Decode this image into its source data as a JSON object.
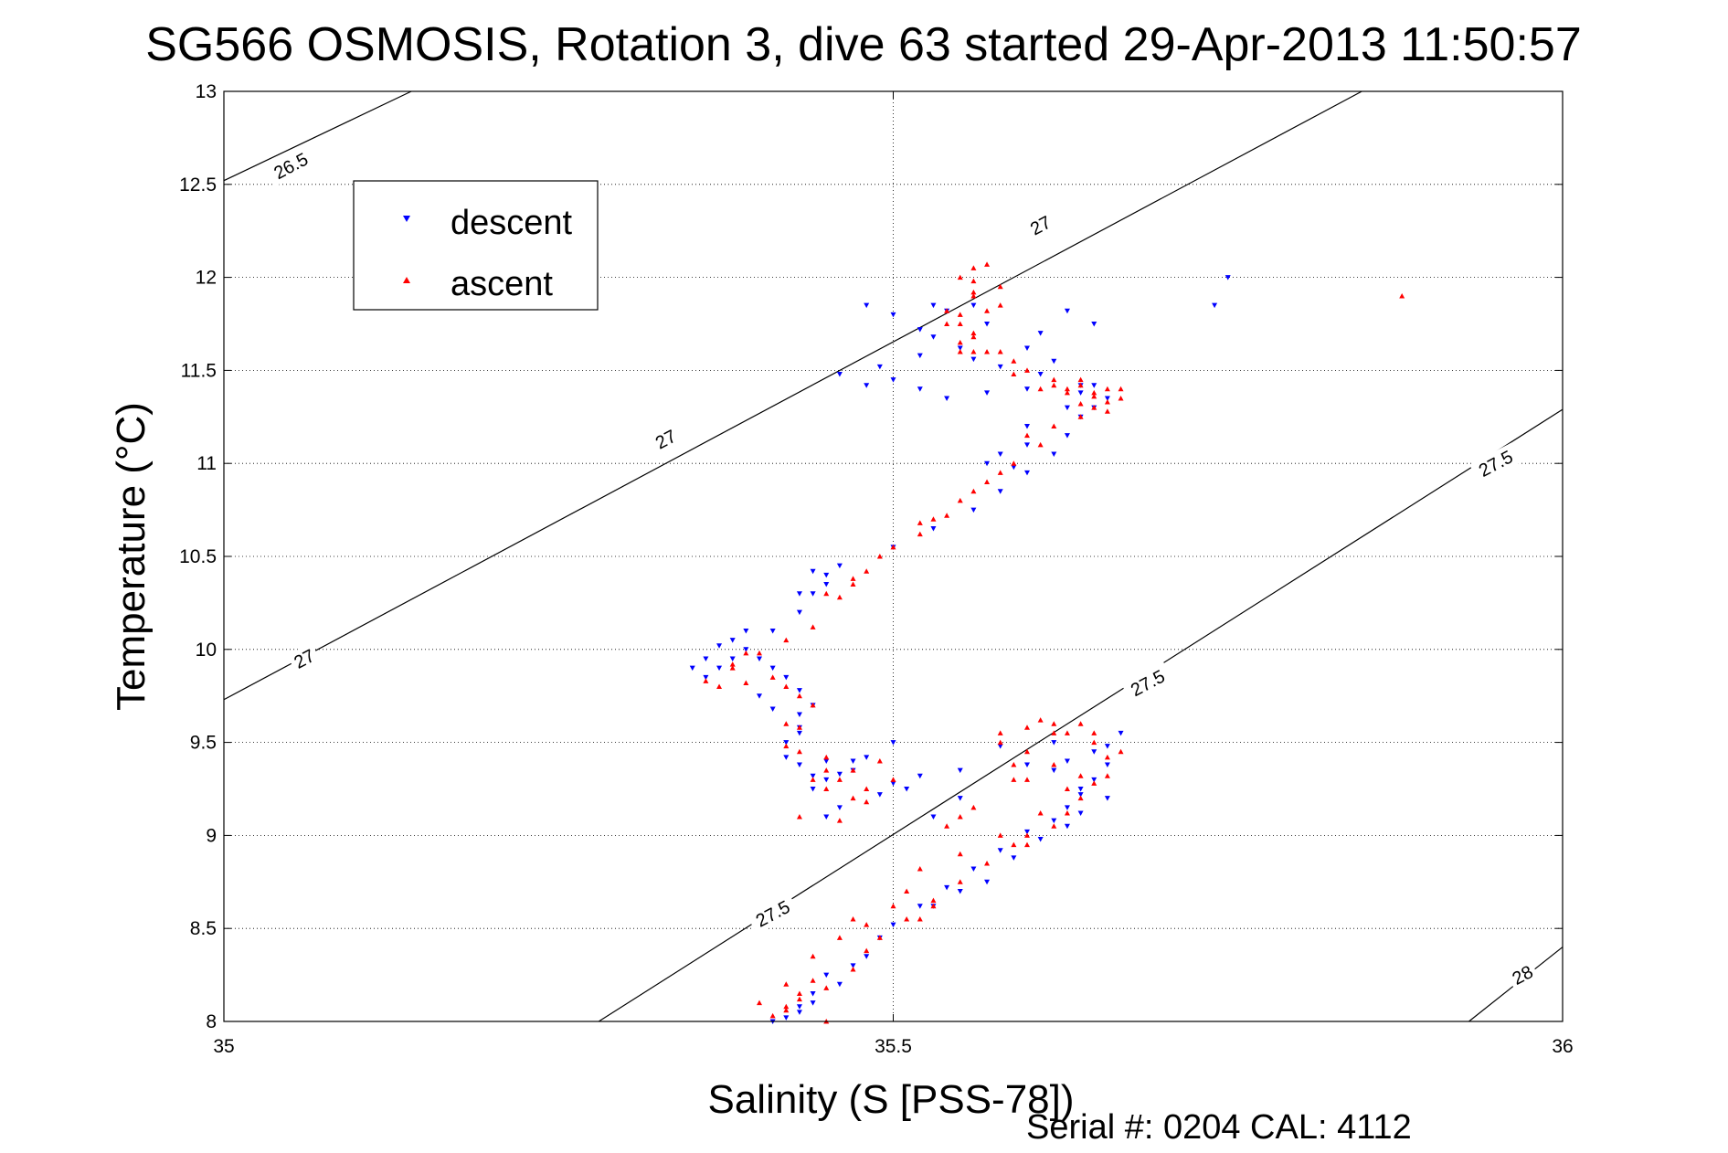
{
  "chart_data": {
    "type": "scatter",
    "title": "SG566 OSMOSIS, Rotation 3, dive 63 started 29-Apr-2013 11:50:57",
    "xlabel": "Salinity (S [PSS-78])",
    "ylabel": "Temperature (°C)",
    "xlim": [
      35,
      36
    ],
    "ylim": [
      8,
      13
    ],
    "x_ticks": [
      "35",
      "35.5",
      "36"
    ],
    "y_ticks": [
      "8",
      "8.5",
      "9",
      "9.5",
      "10",
      "10.5",
      "11",
      "11.5",
      "12",
      "12.5",
      "13"
    ],
    "grid": "dotted",
    "legend_position": "top-left",
    "footer": "Serial #: 0204  CAL: 4112",
    "density_contours": [
      {
        "label": "26.5",
        "points": [
          [
            35.0,
            12.52
          ],
          [
            35.14,
            13.0
          ]
        ]
      },
      {
        "label": "27",
        "points": [
          [
            35.0,
            9.73
          ],
          [
            35.85,
            13.0
          ]
        ]
      },
      {
        "label": "27.5",
        "points": [
          [
            35.28,
            8.0
          ],
          [
            36.0,
            11.29
          ]
        ]
      },
      {
        "label": "28",
        "points": [
          [
            35.93,
            8.0
          ],
          [
            36.0,
            8.4
          ]
        ]
      }
    ],
    "contour_labels": [
      {
        "text": "26.5",
        "x": 35.05,
        "y": 12.6
      },
      {
        "text": "27",
        "x": 35.61,
        "y": 12.28
      },
      {
        "text": "27",
        "x": 35.33,
        "y": 11.13
      },
      {
        "text": "27",
        "x": 35.06,
        "y": 9.95
      },
      {
        "text": "27.5",
        "x": 35.95,
        "y": 11.0
      },
      {
        "text": "27.5",
        "x": 35.69,
        "y": 9.82
      },
      {
        "text": "27.5",
        "x": 35.41,
        "y": 8.58
      },
      {
        "text": "28",
        "x": 35.97,
        "y": 8.25
      }
    ],
    "series": [
      {
        "name": "descent",
        "color": "#0000ff",
        "marker": "triangle-down",
        "points": [
          [
            35.42,
            8.02
          ],
          [
            35.43,
            8.05
          ],
          [
            35.44,
            8.1
          ],
          [
            35.46,
            8.2
          ],
          [
            35.47,
            8.3
          ],
          [
            35.48,
            8.35
          ],
          [
            35.49,
            8.45
          ],
          [
            35.5,
            8.52
          ],
          [
            35.52,
            8.62
          ],
          [
            35.54,
            8.72
          ],
          [
            35.56,
            8.82
          ],
          [
            35.58,
            8.92
          ],
          [
            35.6,
            9.02
          ],
          [
            35.62,
            9.08
          ],
          [
            35.63,
            9.15
          ],
          [
            35.64,
            9.22
          ],
          [
            35.65,
            9.3
          ],
          [
            35.66,
            9.38
          ],
          [
            35.65,
            9.45
          ],
          [
            35.62,
            9.5
          ],
          [
            35.58,
            9.48
          ],
          [
            35.55,
            9.35
          ],
          [
            35.52,
            9.32
          ],
          [
            35.5,
            9.28
          ],
          [
            35.49,
            9.22
          ],
          [
            35.47,
            9.35
          ],
          [
            35.45,
            9.3
          ],
          [
            35.44,
            9.32
          ],
          [
            35.43,
            9.38
          ],
          [
            35.42,
            9.42
          ],
          [
            35.42,
            9.5
          ],
          [
            35.43,
            9.58
          ],
          [
            35.43,
            9.65
          ],
          [
            35.44,
            9.7
          ],
          [
            35.43,
            9.78
          ],
          [
            35.42,
            9.85
          ],
          [
            35.41,
            9.9
          ],
          [
            35.4,
            9.95
          ],
          [
            35.39,
            10.0
          ],
          [
            35.38,
            10.05
          ],
          [
            35.37,
            10.02
          ],
          [
            35.36,
            9.95
          ],
          [
            35.35,
            9.9
          ],
          [
            35.36,
            9.85
          ],
          [
            35.37,
            9.9
          ],
          [
            35.38,
            9.95
          ],
          [
            35.41,
            10.1
          ],
          [
            35.43,
            10.2
          ],
          [
            35.44,
            10.3
          ],
          [
            35.45,
            10.4
          ],
          [
            35.46,
            10.45
          ],
          [
            35.5,
            10.55
          ],
          [
            35.53,
            10.65
          ],
          [
            35.56,
            10.75
          ],
          [
            35.58,
            10.85
          ],
          [
            35.6,
            10.95
          ],
          [
            35.62,
            11.05
          ],
          [
            35.63,
            11.15
          ],
          [
            35.64,
            11.25
          ],
          [
            35.65,
            11.3
          ],
          [
            35.66,
            11.35
          ],
          [
            35.64,
            11.38
          ],
          [
            35.6,
            11.4
          ],
          [
            35.57,
            11.38
          ],
          [
            35.54,
            11.35
          ],
          [
            35.52,
            11.4
          ],
          [
            35.5,
            11.45
          ],
          [
            35.48,
            11.42
          ],
          [
            35.46,
            11.48
          ],
          [
            35.49,
            11.52
          ],
          [
            35.52,
            11.58
          ],
          [
            35.55,
            11.62
          ],
          [
            35.53,
            11.68
          ],
          [
            35.52,
            11.72
          ],
          [
            35.5,
            11.8
          ],
          [
            35.48,
            11.85
          ],
          [
            35.54,
            11.82
          ],
          [
            35.57,
            11.75
          ],
          [
            35.6,
            11.62
          ],
          [
            35.62,
            11.55
          ],
          [
            35.64,
            11.42
          ],
          [
            35.61,
            11.7
          ],
          [
            35.63,
            11.82
          ],
          [
            35.65,
            11.75
          ],
          [
            35.6,
            11.2
          ],
          [
            35.58,
            11.05
          ],
          [
            35.57,
            11.0
          ],
          [
            35.45,
            9.1
          ],
          [
            35.46,
            9.15
          ],
          [
            35.48,
            9.42
          ],
          [
            35.5,
            9.5
          ],
          [
            35.51,
            9.25
          ],
          [
            35.53,
            9.1
          ],
          [
            35.55,
            9.2
          ],
          [
            35.6,
            9.38
          ],
          [
            35.67,
            9.55
          ],
          [
            35.66,
            9.48
          ],
          [
            35.64,
            9.12
          ],
          [
            35.63,
            9.05
          ],
          [
            35.61,
            8.98
          ],
          [
            35.59,
            8.88
          ],
          [
            35.57,
            8.75
          ],
          [
            35.55,
            8.7
          ],
          [
            35.53,
            8.62
          ],
          [
            35.45,
            8.25
          ],
          [
            35.44,
            8.15
          ],
          [
            35.43,
            8.08
          ],
          [
            35.41,
            8.0
          ],
          [
            35.45,
            10.35
          ],
          [
            35.44,
            10.42
          ],
          [
            35.43,
            10.3
          ],
          [
            35.39,
            10.1
          ],
          [
            35.4,
            9.75
          ],
          [
            35.41,
            9.68
          ],
          [
            35.43,
            9.55
          ],
          [
            35.45,
            9.4
          ],
          [
            35.46,
            9.33
          ],
          [
            35.44,
            9.25
          ],
          [
            35.47,
            9.4
          ],
          [
            35.6,
            11.1
          ],
          [
            35.59,
            10.98
          ],
          [
            35.63,
            11.3
          ],
          [
            35.65,
            11.42
          ],
          [
            35.61,
            11.48
          ],
          [
            35.58,
            11.52
          ],
          [
            35.56,
            11.56
          ],
          [
            35.53,
            11.85
          ],
          [
            35.56,
            11.85
          ],
          [
            35.75,
            12.0
          ],
          [
            35.74,
            11.85
          ],
          [
            35.62,
            9.35
          ],
          [
            35.64,
            9.25
          ],
          [
            35.66,
            9.2
          ],
          [
            35.63,
            9.4
          ]
        ]
      },
      {
        "name": "ascent",
        "color": "#ff0000",
        "marker": "triangle-up",
        "points": [
          [
            35.41,
            8.03
          ],
          [
            35.42,
            8.06
          ],
          [
            35.43,
            8.12
          ],
          [
            35.45,
            8.18
          ],
          [
            35.47,
            8.28
          ],
          [
            35.48,
            8.38
          ],
          [
            35.49,
            8.45
          ],
          [
            35.51,
            8.55
          ],
          [
            35.53,
            8.65
          ],
          [
            35.55,
            8.75
          ],
          [
            35.57,
            8.85
          ],
          [
            35.59,
            8.95
          ],
          [
            35.6,
            9.0
          ],
          [
            35.62,
            9.05
          ],
          [
            35.63,
            9.12
          ],
          [
            35.64,
            9.2
          ],
          [
            35.65,
            9.28
          ],
          [
            35.66,
            9.32
          ],
          [
            35.67,
            9.45
          ],
          [
            35.65,
            9.55
          ],
          [
            35.62,
            9.6
          ],
          [
            35.6,
            9.58
          ],
          [
            35.58,
            9.55
          ],
          [
            35.6,
            9.45
          ],
          [
            35.62,
            9.38
          ],
          [
            35.59,
            9.3
          ],
          [
            35.56,
            9.15
          ],
          [
            35.54,
            9.05
          ],
          [
            35.47,
            9.35
          ],
          [
            35.46,
            9.3
          ],
          [
            35.45,
            9.42
          ],
          [
            35.43,
            9.45
          ],
          [
            35.42,
            9.48
          ],
          [
            35.43,
            9.58
          ],
          [
            35.44,
            9.7
          ],
          [
            35.43,
            9.75
          ],
          [
            35.42,
            9.8
          ],
          [
            35.41,
            9.85
          ],
          [
            35.39,
            9.82
          ],
          [
            35.37,
            9.8
          ],
          [
            35.36,
            9.83
          ],
          [
            35.38,
            9.9
          ],
          [
            35.4,
            9.98
          ],
          [
            35.42,
            10.05
          ],
          [
            35.44,
            10.12
          ],
          [
            35.46,
            10.28
          ],
          [
            35.47,
            10.35
          ],
          [
            35.48,
            10.42
          ],
          [
            35.49,
            10.5
          ],
          [
            35.5,
            10.55
          ],
          [
            35.52,
            10.62
          ],
          [
            35.54,
            10.72
          ],
          [
            35.55,
            10.8
          ],
          [
            35.57,
            10.9
          ],
          [
            35.59,
            11.0
          ],
          [
            35.61,
            11.1
          ],
          [
            35.62,
            11.2
          ],
          [
            35.64,
            11.25
          ],
          [
            35.65,
            11.3
          ],
          [
            35.67,
            11.35
          ],
          [
            35.66,
            11.4
          ],
          [
            35.64,
            11.42
          ],
          [
            35.62,
            11.45
          ],
          [
            35.6,
            11.5
          ],
          [
            35.59,
            11.55
          ],
          [
            35.58,
            11.6
          ],
          [
            35.56,
            11.7
          ],
          [
            35.55,
            11.8
          ],
          [
            35.56,
            11.9
          ],
          [
            35.55,
            12.0
          ],
          [
            35.56,
            12.05
          ],
          [
            35.58,
            11.95
          ],
          [
            35.58,
            11.85
          ],
          [
            35.54,
            11.75
          ],
          [
            35.61,
            11.4
          ],
          [
            35.63,
            11.38
          ],
          [
            35.65,
            11.36
          ],
          [
            35.66,
            11.33
          ],
          [
            35.56,
            11.68
          ],
          [
            35.55,
            11.6
          ],
          [
            35.44,
            9.3
          ],
          [
            35.45,
            9.25
          ],
          [
            35.47,
            9.2
          ],
          [
            35.48,
            9.18
          ],
          [
            35.46,
            9.08
          ],
          [
            35.5,
            8.62
          ],
          [
            35.47,
            8.55
          ],
          [
            35.51,
            8.7
          ],
          [
            35.52,
            8.82
          ],
          [
            35.55,
            8.9
          ],
          [
            35.58,
            9.0
          ],
          [
            35.61,
            9.12
          ],
          [
            35.63,
            9.25
          ],
          [
            35.64,
            9.32
          ],
          [
            35.66,
            9.42
          ],
          [
            35.63,
            9.55
          ],
          [
            35.61,
            9.62
          ],
          [
            35.58,
            9.5
          ],
          [
            35.59,
            9.38
          ],
          [
            35.6,
            9.3
          ],
          [
            35.52,
            10.68
          ],
          [
            35.53,
            10.7
          ],
          [
            35.47,
            10.38
          ],
          [
            35.45,
            10.3
          ],
          [
            35.39,
            9.98
          ],
          [
            35.38,
            9.92
          ],
          [
            35.42,
            9.6
          ],
          [
            35.45,
            9.35
          ],
          [
            35.43,
            9.1
          ],
          [
            35.4,
            8.1
          ],
          [
            35.42,
            8.2
          ],
          [
            35.44,
            8.35
          ],
          [
            35.46,
            8.45
          ],
          [
            35.48,
            8.52
          ],
          [
            35.55,
            11.75
          ],
          [
            35.57,
            11.6
          ],
          [
            35.59,
            11.48
          ],
          [
            35.64,
            11.32
          ],
          [
            35.66,
            11.28
          ],
          [
            35.6,
            11.15
          ],
          [
            35.58,
            10.95
          ],
          [
            35.56,
            10.85
          ],
          [
            35.64,
            11.45
          ],
          [
            35.62,
            11.42
          ],
          [
            35.54,
            11.82
          ],
          [
            35.57,
            12.07
          ],
          [
            35.56,
            11.98
          ],
          [
            35.63,
            11.4
          ],
          [
            35.65,
            11.38
          ],
          [
            35.67,
            11.4
          ],
          [
            35.55,
            9.1
          ],
          [
            35.6,
            8.95
          ],
          [
            35.53,
            8.62
          ],
          [
            35.52,
            8.55
          ],
          [
            35.45,
            8.0
          ],
          [
            35.48,
            9.25
          ],
          [
            35.5,
            9.3
          ],
          [
            35.49,
            9.4
          ],
          [
            35.42,
            8.08
          ],
          [
            35.43,
            8.15
          ],
          [
            35.44,
            8.22
          ],
          [
            35.55,
            11.65
          ],
          [
            35.56,
            11.6
          ],
          [
            35.88,
            11.9
          ],
          [
            35.57,
            11.82
          ],
          [
            35.56,
            11.92
          ],
          [
            35.65,
            9.5
          ],
          [
            35.64,
            9.6
          ],
          [
            35.62,
            9.55
          ]
        ]
      }
    ]
  }
}
